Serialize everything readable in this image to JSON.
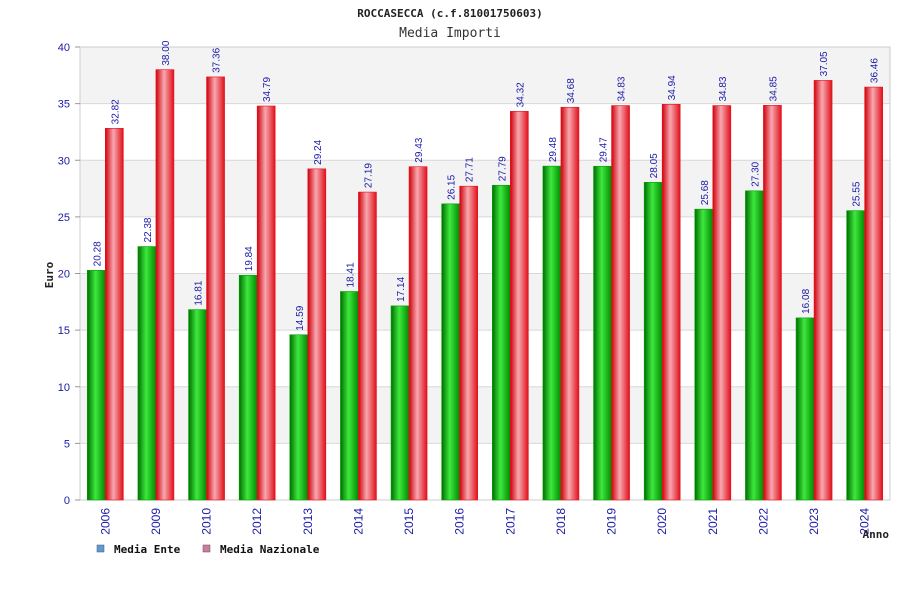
{
  "chart_data": {
    "type": "bar",
    "title": "ROCCASECCA (c.f.81001750603)",
    "subtitle": "Media Importi",
    "xlabel": "Anno",
    "ylabel": "Euro",
    "ylim": [
      0,
      40
    ],
    "yticks": [
      0,
      5,
      10,
      15,
      20,
      25,
      30,
      35,
      40
    ],
    "grid": true,
    "legend_position": "bottom-left",
    "categories": [
      "2006",
      "2009",
      "2010",
      "2012",
      "2013",
      "2014",
      "2015",
      "2016",
      "2017",
      "2018",
      "2019",
      "2020",
      "2021",
      "2022",
      "2023",
      "2024"
    ],
    "series": [
      {
        "name": "Media Ente",
        "color": "#00a000",
        "legend_color": "#5b9bd5",
        "values": [
          20.28,
          22.38,
          16.81,
          19.84,
          14.59,
          18.41,
          17.14,
          26.15,
          27.79,
          29.48,
          29.47,
          28.05,
          25.68,
          27.3,
          16.08,
          25.55
        ],
        "labels": [
          "20.28",
          "22.38",
          "16.81",
          "19.84",
          "14.59",
          "18.41",
          "17.14",
          "26.15",
          "27.79",
          "29.48",
          "29.47",
          "28.05",
          "25.68",
          "27.30",
          "16.08",
          "25.55"
        ]
      },
      {
        "name": "Media Nazionale",
        "color": "#e8101c",
        "legend_color": "#d07aa0",
        "values": [
          32.82,
          38.0,
          37.36,
          34.79,
          29.24,
          27.19,
          29.43,
          27.71,
          34.32,
          34.68,
          34.83,
          34.94,
          34.83,
          34.85,
          37.05,
          36.46
        ],
        "labels": [
          "32.82",
          "38.00",
          "37.36",
          "34.79",
          "29.24",
          "27.19",
          "29.43",
          "27.71",
          "34.32",
          "34.68",
          "34.83",
          "34.94",
          "34.83",
          "34.85",
          "37.05",
          "36.46"
        ]
      }
    ]
  }
}
